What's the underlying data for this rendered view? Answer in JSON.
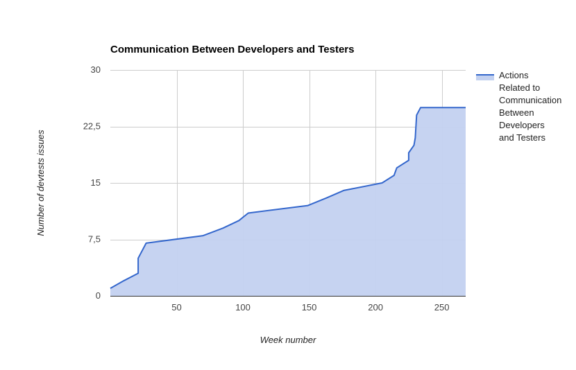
{
  "chart_data": {
    "type": "area",
    "title": "Communication Between Developers and Testers",
    "xlabel": "Week number",
    "ylabel": "Number of devtests issues",
    "xlim": [
      0,
      268
    ],
    "ylim": [
      0,
      30
    ],
    "x_ticks": [
      50,
      100,
      150,
      200,
      250
    ],
    "x_tick_labels": [
      "50",
      "100",
      "150",
      "200",
      "250"
    ],
    "y_ticks": [
      0,
      7.5,
      15,
      22.5,
      30
    ],
    "y_tick_labels": [
      "0",
      "7,5",
      "15",
      "22,5",
      "30"
    ],
    "grid": true,
    "legend_position": "right",
    "series": [
      {
        "name": "Actions Related to Communication Between Developers and Testers",
        "legend_lines": [
          "Actions",
          "Related to",
          "Communication",
          "Between",
          "Developers",
          "and Testers"
        ],
        "line_color": "#3366cc",
        "fill_color": "#c3d1f0",
        "points": [
          [
            0,
            1
          ],
          [
            10,
            2
          ],
          [
            21,
            3
          ],
          [
            21,
            5
          ],
          [
            27,
            7
          ],
          [
            70,
            8
          ],
          [
            85,
            9
          ],
          [
            97,
            10
          ],
          [
            104,
            11
          ],
          [
            149,
            12
          ],
          [
            163,
            13
          ],
          [
            176,
            14
          ],
          [
            205,
            15
          ],
          [
            214,
            16
          ],
          [
            216,
            17
          ],
          [
            225,
            18
          ],
          [
            225,
            19
          ],
          [
            229,
            20
          ],
          [
            230,
            21
          ],
          [
            231,
            24
          ],
          [
            234,
            25
          ],
          [
            268,
            25
          ]
        ]
      }
    ]
  }
}
